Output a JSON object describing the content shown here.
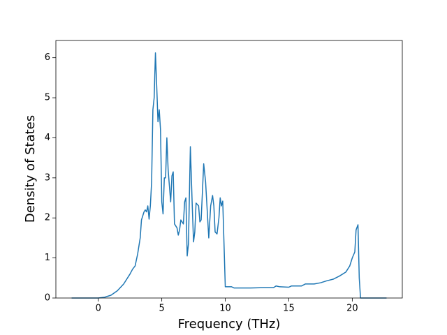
{
  "chart_data": {
    "type": "line",
    "xlabel": "Frequency (THz)",
    "ylabel": "Density of States",
    "color": "#1f77b4",
    "xlim": [
      -3.34,
      23.94
    ],
    "ylim": [
      0,
      6.43
    ],
    "xticks": [
      0,
      5,
      10,
      15,
      20
    ],
    "yticks": [
      0,
      1,
      2,
      3,
      4,
      5,
      6
    ],
    "x": [
      -2.1,
      0,
      0.5,
      1,
      1.5,
      2,
      2.5,
      2.7,
      2.9,
      3.1,
      3.3,
      3.4,
      3.6,
      3.7,
      3.8,
      3.9,
      4.0,
      4.1,
      4.2,
      4.3,
      4.4,
      4.5,
      4.6,
      4.7,
      4.8,
      4.9,
      5.0,
      5.1,
      5.2,
      5.3,
      5.4,
      5.5,
      5.7,
      5.8,
      5.9,
      6.0,
      6.2,
      6.3,
      6.4,
      6.5,
      6.7,
      6.8,
      6.9,
      7.0,
      7.1,
      7.25,
      7.4,
      7.5,
      7.6,
      7.7,
      7.9,
      8.0,
      8.1,
      8.3,
      8.45,
      8.7,
      8.85,
      9.0,
      9.1,
      9.2,
      9.35,
      9.5,
      9.6,
      9.7,
      9.8,
      10.0,
      10.5,
      10.7,
      11,
      12,
      13,
      13.8,
      14,
      14.3,
      15,
      15.2,
      16,
      16.3,
      17,
      17.5,
      18,
      18.5,
      19,
      19.5,
      19.8,
      20,
      20.2,
      20.3,
      20.45,
      20.55,
      20.65,
      22.7
    ],
    "values": [
      0,
      0,
      0.02,
      0.07,
      0.18,
      0.35,
      0.6,
      0.72,
      0.8,
      1.1,
      1.5,
      1.95,
      2.15,
      2.2,
      2.15,
      2.3,
      1.97,
      2.3,
      2.9,
      4.7,
      5.0,
      6.12,
      5.3,
      4.4,
      4.7,
      4.2,
      2.4,
      2.1,
      3.0,
      3.0,
      4.0,
      3.2,
      2.4,
      3.05,
      3.15,
      1.85,
      1.75,
      1.57,
      1.7,
      1.95,
      1.85,
      2.4,
      2.5,
      1.05,
      1.35,
      3.78,
      2.3,
      1.4,
      1.65,
      2.37,
      2.3,
      1.9,
      1.95,
      3.35,
      2.9,
      1.5,
      2.3,
      2.56,
      2.3,
      1.65,
      1.6,
      2.0,
      2.5,
      2.3,
      2.42,
      0.28,
      0.28,
      0.25,
      0.25,
      0.25,
      0.26,
      0.26,
      0.3,
      0.28,
      0.27,
      0.3,
      0.3,
      0.35,
      0.35,
      0.38,
      0.43,
      0.47,
      0.55,
      0.65,
      0.8,
      1.0,
      1.15,
      1.7,
      1.83,
      0.5,
      0,
      0
    ]
  }
}
